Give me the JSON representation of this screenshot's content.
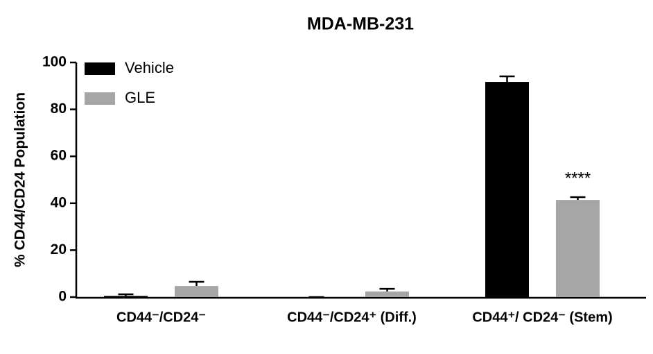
{
  "chart_data": {
    "type": "bar",
    "title": "MDA-MB-231",
    "y_label": "% CD44/CD24 Population",
    "categories": [
      "CD44⁻/CD24⁻",
      "CD44⁻/CD24⁺ (Diff.)",
      "CD44⁺/ CD24⁻ (Stem)"
    ],
    "series": [
      {
        "name": "Vehicle",
        "color": "#000000",
        "values": [
          0.5,
          0,
          91.7
        ],
        "errors": [
          0.7,
          0,
          2.4
        ]
      },
      {
        "name": "GLE",
        "color": "#a6a6a6",
        "values": [
          4.7,
          2.4,
          41.4
        ],
        "errors": [
          1.8,
          1.1,
          1.2
        ]
      }
    ],
    "annotations": [
      {
        "text": "****",
        "category": 2,
        "series": 1
      }
    ],
    "ylim": [
      0,
      100
    ],
    "yticks": [
      0,
      20,
      40,
      60,
      80,
      100
    ],
    "legend": "upper left"
  }
}
